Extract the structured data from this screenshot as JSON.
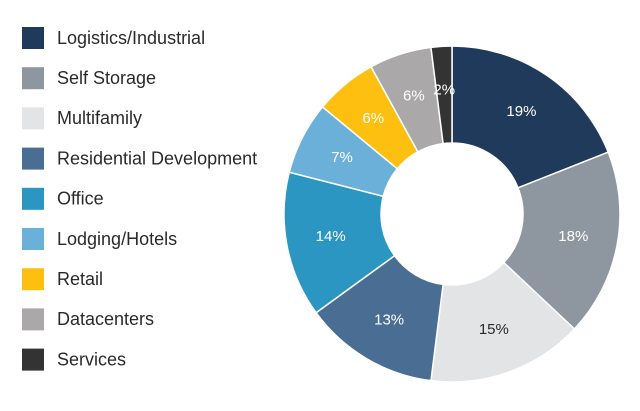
{
  "chart_data": {
    "type": "donut",
    "categories": [
      "Logistics/Industrial",
      "Self Storage",
      "Multifamily",
      "Residential Development",
      "Office",
      "Lodging/Hotels",
      "Retail",
      "Datacenters",
      "Services"
    ],
    "values": [
      19,
      18,
      15,
      13,
      14,
      7,
      6,
      6,
      2
    ],
    "value_labels": [
      "19%",
      "18%",
      "15%",
      "13%",
      "14%",
      "7%",
      "6%",
      "6%",
      "2%"
    ],
    "colors": [
      "#1f3a5a",
      "#8e979f",
      "#e3e4e6",
      "#4a6d93",
      "#2b96c1",
      "#6bb0d8",
      "#fdc010",
      "#aaa8a8",
      "#333333"
    ],
    "legend": "left"
  }
}
